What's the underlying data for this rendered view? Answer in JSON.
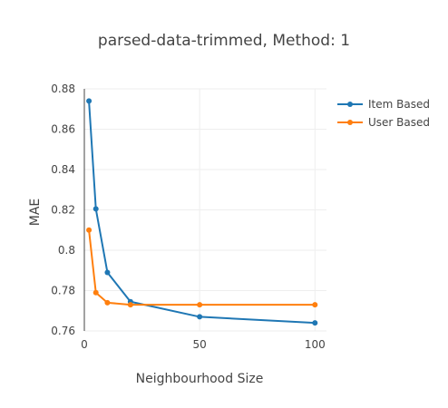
{
  "chart_data": {
    "type": "line",
    "title": "parsed-data-trimmed, Method: 1",
    "xlabel": "Neighbourhood Size",
    "ylabel": "MAE",
    "xlim": [
      0,
      105
    ],
    "ylim": [
      0.76,
      0.88
    ],
    "x_ticks": [
      0,
      50,
      100
    ],
    "x_tick_labels": [
      "0",
      "50",
      "100"
    ],
    "y_ticks": [
      0.76,
      0.78,
      0.8,
      0.82,
      0.84,
      0.86,
      0.88
    ],
    "y_tick_labels": [
      "0.76",
      "0.78",
      "0.8",
      "0.82",
      "0.84",
      "0.86",
      "0.88"
    ],
    "grid": true,
    "legend_position": "top-right",
    "x": [
      2,
      5,
      10,
      20,
      50,
      100
    ],
    "series": [
      {
        "name": "Item Based",
        "color": "#1f77b4",
        "values": [
          0.874,
          0.8205,
          0.789,
          0.7745,
          0.767,
          0.764
        ]
      },
      {
        "name": "User Based",
        "color": "#ff7f0e",
        "values": [
          0.81,
          0.779,
          0.774,
          0.773,
          0.773,
          0.773
        ]
      }
    ]
  }
}
